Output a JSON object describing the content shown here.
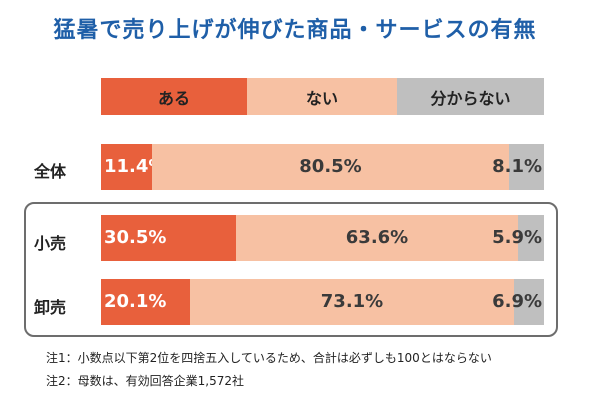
{
  "title": "猛暑で売り上げが伸びた商品・サービスの有無",
  "chart_data": {
    "type": "bar",
    "stacked": true,
    "orientation": "horizontal",
    "title": "猛暑で売り上げが伸びた商品・サービスの有無",
    "xlim": [
      0,
      100
    ],
    "categories": [
      "全体",
      "小売",
      "卸売"
    ],
    "series": [
      {
        "name": "ある",
        "color": "#e8603c",
        "values": [
          11.4,
          30.5,
          20.1
        ],
        "labels": [
          "11.4%",
          "30.5%",
          "20.1%"
        ]
      },
      {
        "name": "ない",
        "color": "#f7c1a3",
        "values": [
          80.5,
          63.6,
          73.1
        ],
        "labels": [
          "80.5%",
          "63.6%",
          "73.1%"
        ]
      },
      {
        "name": "分からない",
        "color": "#bfbfbf",
        "values": [
          8.1,
          5.9,
          6.9
        ],
        "labels": [
          "8.1%",
          "5.9%",
          "6.9%"
        ]
      }
    ],
    "legend": "top",
    "grid": false
  },
  "notes": [
    "注1：小数点以下第2位を四捨五入しているため、合計は必ずしも100とはならない",
    "注2：母数は、有効回答企業1,572社"
  ]
}
